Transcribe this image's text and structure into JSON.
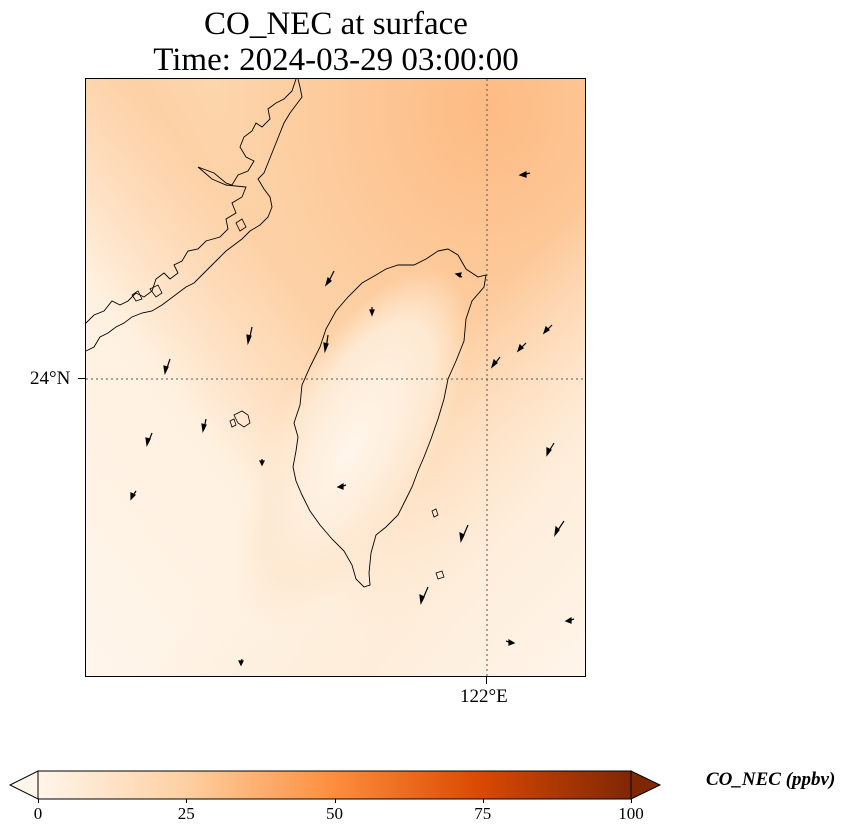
{
  "title": {
    "line1": "CO_NEC at surface",
    "line2": "Time: 2024-03-29 03:00:00"
  },
  "map": {
    "variable": "CO_NEC",
    "level": "surface",
    "gridline_style": "dotted",
    "lat_label": "24°N",
    "lon_label": "122°E",
    "features": [
      "coastline",
      "wind-vectors"
    ],
    "colormap": "Oranges"
  },
  "colorbar": {
    "label": "CO_NEC (ppbv)",
    "ticks": [
      "0",
      "25",
      "50",
      "75",
      "100"
    ],
    "min": 0,
    "max": 100,
    "extend": "both",
    "colors": [
      "#fff5eb",
      "#fdd0a2",
      "#fd8d3c",
      "#d94801",
      "#7f2704"
    ]
  }
}
